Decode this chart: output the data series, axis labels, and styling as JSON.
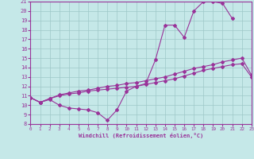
{
  "xlabel": "Windchill (Refroidissement éolien,°C)",
  "xlim": [
    0,
    23
  ],
  "ylim": [
    8,
    21
  ],
  "yticks": [
    8,
    9,
    10,
    11,
    12,
    13,
    14,
    15,
    16,
    17,
    18,
    19,
    20,
    21
  ],
  "xticks": [
    0,
    1,
    2,
    3,
    4,
    5,
    6,
    7,
    8,
    9,
    10,
    11,
    12,
    13,
    14,
    15,
    16,
    17,
    18,
    19,
    20,
    21,
    22,
    23
  ],
  "bg_color": "#c5e8e8",
  "line_color": "#993399",
  "grid_color": "#9ec8c8",
  "curve1_x": [
    0,
    1,
    2,
    3,
    4,
    5,
    6,
    7,
    8,
    9,
    10,
    11,
    12,
    13,
    14,
    15,
    16,
    17,
    18,
    19,
    20,
    21
  ],
  "curve1_y": [
    10.8,
    10.3,
    10.6,
    10.0,
    9.7,
    9.6,
    9.5,
    9.2,
    8.4,
    9.5,
    11.5,
    12.0,
    12.3,
    14.8,
    18.5,
    18.5,
    17.2,
    20.0,
    21.0,
    21.0,
    20.8,
    19.2
  ],
  "curve2_x": [
    0,
    1,
    2,
    3,
    4,
    5,
    6,
    7,
    8,
    9,
    10,
    11,
    12,
    13,
    14,
    15,
    16,
    17,
    18,
    19,
    20,
    21,
    22,
    23
  ],
  "curve2_y": [
    10.8,
    10.3,
    10.7,
    11.0,
    11.2,
    11.3,
    11.5,
    11.6,
    11.7,
    11.8,
    11.9,
    12.0,
    12.2,
    12.4,
    12.6,
    12.8,
    13.1,
    13.4,
    13.7,
    13.9,
    14.1,
    14.3,
    14.4,
    13.0
  ],
  "curve3_x": [
    0,
    1,
    2,
    3,
    4,
    5,
    6,
    7,
    8,
    9,
    10,
    11,
    12,
    13,
    14,
    15,
    16,
    17,
    18,
    19,
    20,
    21,
    22,
    23
  ],
  "curve3_y": [
    10.8,
    10.3,
    10.7,
    11.1,
    11.3,
    11.5,
    11.6,
    11.8,
    12.0,
    12.1,
    12.3,
    12.4,
    12.6,
    12.8,
    13.0,
    13.3,
    13.6,
    13.9,
    14.1,
    14.3,
    14.6,
    14.8,
    15.0,
    13.2
  ]
}
